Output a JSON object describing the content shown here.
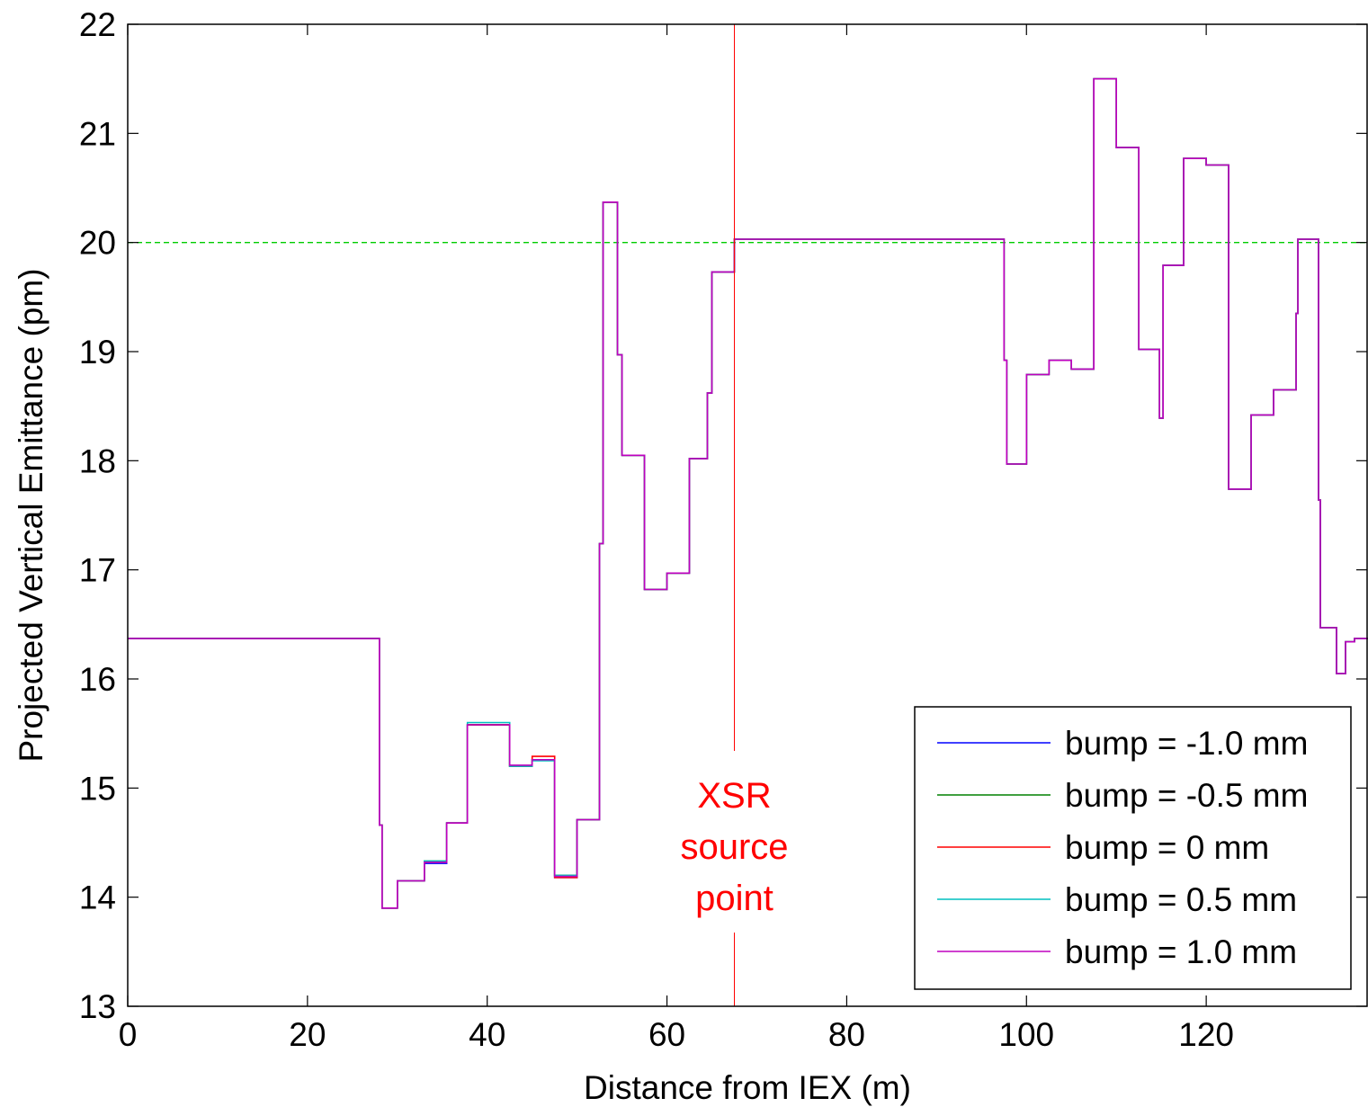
{
  "chart_data": {
    "type": "line",
    "title": "",
    "xlabel": "Distance from IEX (m)",
    "ylabel": "Projected Vertical Emittance (pm)",
    "xlim": [
      0,
      138
    ],
    "ylim": [
      13,
      22
    ],
    "xticks": [
      0,
      20,
      40,
      60,
      80,
      100,
      120
    ],
    "yticks": [
      13,
      14,
      15,
      16,
      17,
      18,
      19,
      20,
      21,
      22
    ],
    "grid": false,
    "legend_position": "bottom-right",
    "reference_line": {
      "y": 20,
      "color": "#00cc00",
      "style": "dashed"
    },
    "marker_line": {
      "x": 67.5,
      "color": "#ff0000",
      "label": [
        "XSR",
        "source",
        "point"
      ]
    },
    "step_x": [
      0,
      28.0,
      28.3,
      30.0,
      33.0,
      35.5,
      37.8,
      42.5,
      45.0,
      47.5,
      50.0,
      52.5,
      52.9,
      54.5,
      55.0,
      57.5,
      60.0,
      62.5,
      64.5,
      65.0,
      67.5,
      97.5,
      97.8,
      100.0,
      102.5,
      105.0,
      107.5,
      110.0,
      112.5,
      114.8,
      115.2,
      117.5,
      120.0,
      122.5,
      125.0,
      127.5,
      130.0,
      130.2,
      132.5,
      132.7,
      134.5,
      135.5,
      136.5,
      138.0
    ],
    "series": [
      {
        "name": "bump = -1.0 mm",
        "color": "#0000ff",
        "values": [
          16.37,
          14.66,
          13.9,
          14.15,
          14.31,
          14.68,
          15.58,
          15.2,
          15.26,
          14.18,
          14.71,
          17.24,
          20.37,
          18.97,
          18.05,
          16.82,
          16.97,
          18.02,
          18.62,
          19.73,
          20.03,
          18.92,
          17.97,
          18.79,
          18.92,
          18.84,
          21.5,
          20.87,
          19.02,
          18.39,
          19.79,
          20.77,
          20.71,
          17.74,
          18.42,
          18.65,
          19.35,
          20.03,
          17.64,
          16.47,
          16.05,
          16.34,
          16.37,
          16.37
        ]
      },
      {
        "name": "bump = -0.5 mm",
        "color": "#008000",
        "values": [
          16.37,
          14.66,
          13.9,
          14.15,
          14.33,
          14.68,
          15.58,
          15.2,
          15.26,
          14.2,
          14.71,
          17.24,
          20.37,
          18.97,
          18.05,
          16.82,
          16.97,
          18.02,
          18.62,
          19.73,
          20.03,
          18.92,
          17.97,
          18.79,
          18.92,
          18.84,
          21.5,
          20.87,
          19.02,
          18.39,
          19.79,
          20.77,
          20.71,
          17.74,
          18.42,
          18.65,
          19.35,
          20.03,
          17.64,
          16.47,
          16.05,
          16.34,
          16.37,
          16.37
        ]
      },
      {
        "name": "bump = 0 mm",
        "color": "#ff0000",
        "values": [
          16.37,
          14.66,
          13.9,
          14.15,
          14.32,
          14.68,
          15.58,
          15.2,
          15.29,
          14.18,
          14.71,
          17.24,
          20.37,
          18.97,
          18.05,
          16.82,
          16.97,
          18.02,
          18.62,
          19.73,
          20.03,
          18.92,
          17.97,
          18.79,
          18.92,
          18.84,
          21.5,
          20.87,
          19.02,
          18.39,
          19.79,
          20.77,
          20.71,
          17.74,
          18.42,
          18.65,
          19.35,
          20.03,
          17.64,
          16.47,
          16.05,
          16.34,
          16.37,
          16.37
        ]
      },
      {
        "name": "bump = 0.5 mm",
        "color": "#00bfbf",
        "values": [
          16.37,
          14.66,
          13.9,
          14.15,
          14.33,
          14.68,
          15.6,
          15.2,
          15.25,
          14.2,
          14.71,
          17.24,
          20.37,
          18.97,
          18.05,
          16.82,
          16.97,
          18.02,
          18.62,
          19.73,
          20.03,
          18.92,
          17.97,
          18.79,
          18.92,
          18.84,
          21.5,
          20.87,
          19.02,
          18.39,
          19.79,
          20.77,
          20.71,
          17.74,
          18.42,
          18.65,
          19.35,
          20.03,
          17.64,
          16.47,
          16.05,
          16.34,
          16.37,
          16.37
        ]
      },
      {
        "name": "bump = 1.0 mm",
        "color": "#bf00bf",
        "values": [
          16.37,
          14.66,
          13.9,
          14.15,
          14.32,
          14.68,
          15.58,
          15.21,
          15.26,
          14.19,
          14.71,
          17.24,
          20.37,
          18.97,
          18.05,
          16.82,
          16.97,
          18.02,
          18.62,
          19.73,
          20.03,
          18.92,
          17.97,
          18.79,
          18.92,
          18.84,
          21.5,
          20.87,
          19.02,
          18.39,
          19.79,
          20.77,
          20.71,
          17.74,
          18.42,
          18.65,
          19.35,
          20.03,
          17.64,
          16.47,
          16.05,
          16.34,
          16.37,
          16.37
        ]
      }
    ]
  }
}
